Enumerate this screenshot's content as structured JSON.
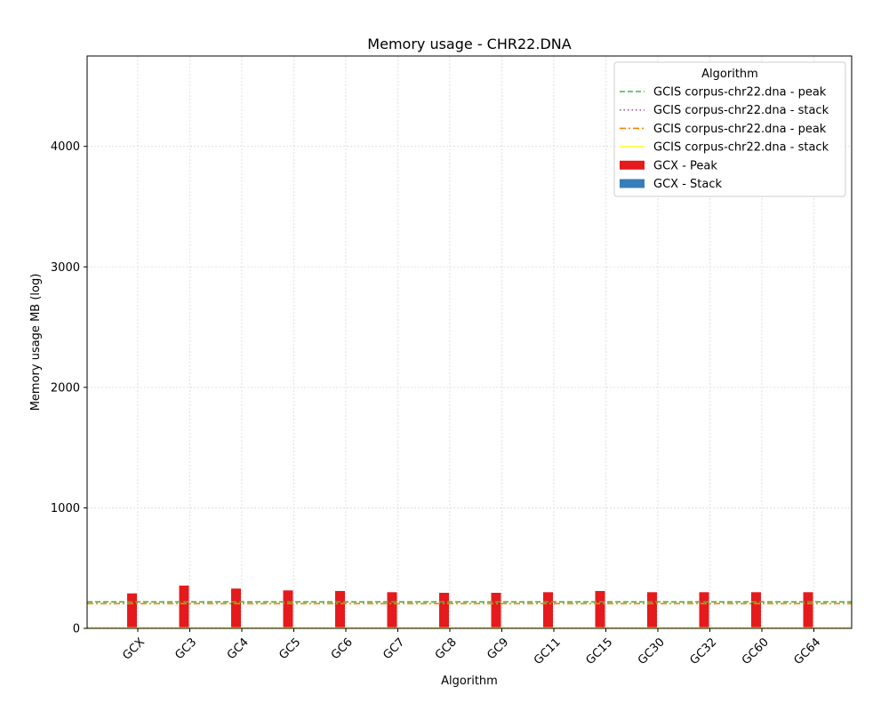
{
  "chart_data": {
    "type": "bar",
    "title": "Memory usage -  CHR22.DNA",
    "xlabel": "Algorithm",
    "ylabel": "Memory usage MB (log)",
    "ylim": [
      0,
      4750
    ],
    "yticks": [
      0,
      1000,
      2000,
      3000,
      4000
    ],
    "grid": true,
    "categories": [
      "GCX",
      "GC3",
      "GC4",
      "GC5",
      "GC6",
      "GC7",
      "GC8",
      "GC9",
      "GC11",
      "GC15",
      "GC30",
      "GC32",
      "GC60",
      "GC64"
    ],
    "series": [
      {
        "name": "GCX - Peak",
        "type": "bar",
        "color": "#e41a1c",
        "values": [
          290,
          355,
          330,
          315,
          310,
          300,
          295,
          295,
          300,
          310,
          300,
          300,
          300,
          300
        ]
      },
      {
        "name": "GCX - Stack",
        "type": "bar",
        "color": "#377eb8",
        "values": [
          0,
          0,
          0,
          0,
          0,
          0,
          0,
          0,
          0,
          0,
          0,
          0,
          0,
          0
        ]
      }
    ],
    "reference_lines": [
      {
        "name": "GCIS corpus-chr22.dna - peak",
        "value": 220,
        "color": "#4daf4a",
        "style": "dashed"
      },
      {
        "name": "GCIS corpus-chr22.dna - stack",
        "value": 5,
        "color": "#984ea3",
        "style": "dotted"
      },
      {
        "name": "GCIS corpus-chr22.dna - peak",
        "value": 205,
        "color": "#ff7f00",
        "style": "dashdot"
      },
      {
        "name": "GCIS corpus-chr22.dna - stack",
        "value": 3,
        "color": "#ffff33",
        "style": "solid"
      }
    ],
    "legend": {
      "title": "Algorithm",
      "position": "top-right",
      "entries": [
        {
          "label": "GCIS corpus-chr22.dna - peak",
          "kind": "line",
          "color": "#4daf4a",
          "style": "dashed"
        },
        {
          "label": "GCIS corpus-chr22.dna - stack",
          "kind": "line",
          "color": "#984ea3",
          "style": "dotted"
        },
        {
          "label": "GCIS corpus-chr22.dna - peak",
          "kind": "line",
          "color": "#ff7f00",
          "style": "dashdot"
        },
        {
          "label": "GCIS corpus-chr22.dna - stack",
          "kind": "line",
          "color": "#ffff33",
          "style": "solid"
        },
        {
          "label": "GCX - Peak",
          "kind": "patch",
          "color": "#e41a1c"
        },
        {
          "label": "GCX - Stack",
          "kind": "patch",
          "color": "#377eb8"
        }
      ]
    }
  }
}
